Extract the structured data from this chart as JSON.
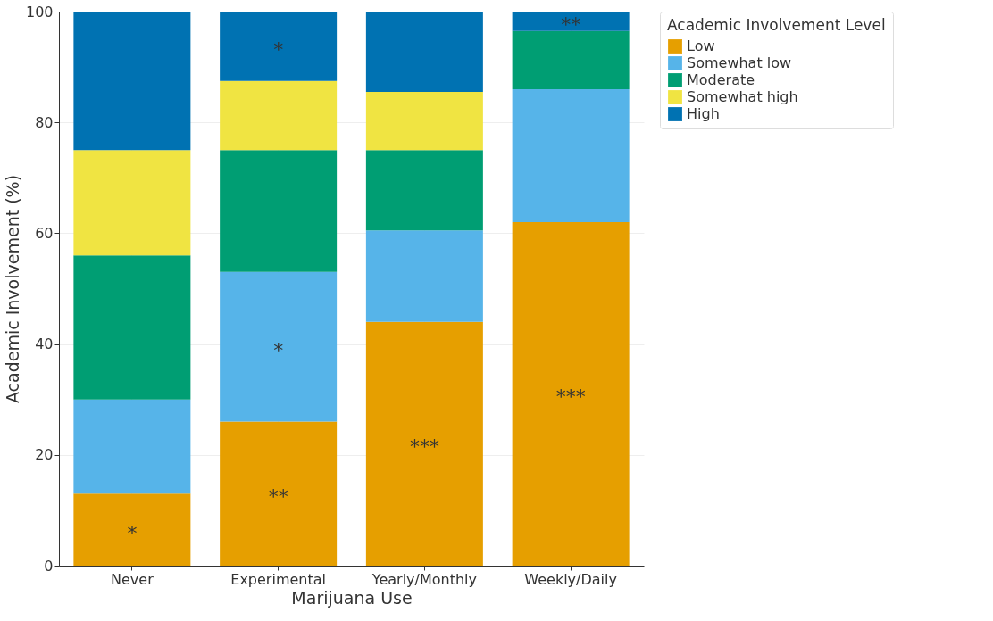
{
  "chart_data": {
    "type": "bar",
    "stacked": true,
    "xlabel": "Marijuana Use",
    "ylabel": "Academic Involvement (%)",
    "legend_title": "Academic Involvement Level",
    "categories": [
      "Never",
      "Experimental",
      "Yearly/Monthly",
      "Weekly/Daily"
    ],
    "series": [
      {
        "name": "Low",
        "color": "#e69f00",
        "values": [
          13,
          26,
          44,
          62
        ],
        "value_labels": [
          "*",
          "**",
          "***",
          "***"
        ]
      },
      {
        "name": "Somewhat low",
        "color": "#56b4e9",
        "values": [
          17,
          27,
          16.5,
          24
        ],
        "value_labels": [
          null,
          "*",
          null,
          null
        ]
      },
      {
        "name": "Moderate",
        "color": "#009e73",
        "values": [
          26,
          22,
          14.5,
          10.5
        ]
      },
      {
        "name": "Somewhat high",
        "color": "#f0e442",
        "values": [
          19,
          12.5,
          10.5,
          0
        ]
      },
      {
        "name": "High",
        "color": "#0072b2",
        "values": [
          25,
          12.5,
          14.5,
          3.5
        ],
        "value_labels": [
          null,
          "*",
          null,
          "**"
        ]
      }
    ],
    "ylim": [
      0,
      100
    ],
    "yticks": [
      0,
      20,
      40,
      60,
      80,
      100
    ],
    "grid": true,
    "legend": "top right"
  }
}
